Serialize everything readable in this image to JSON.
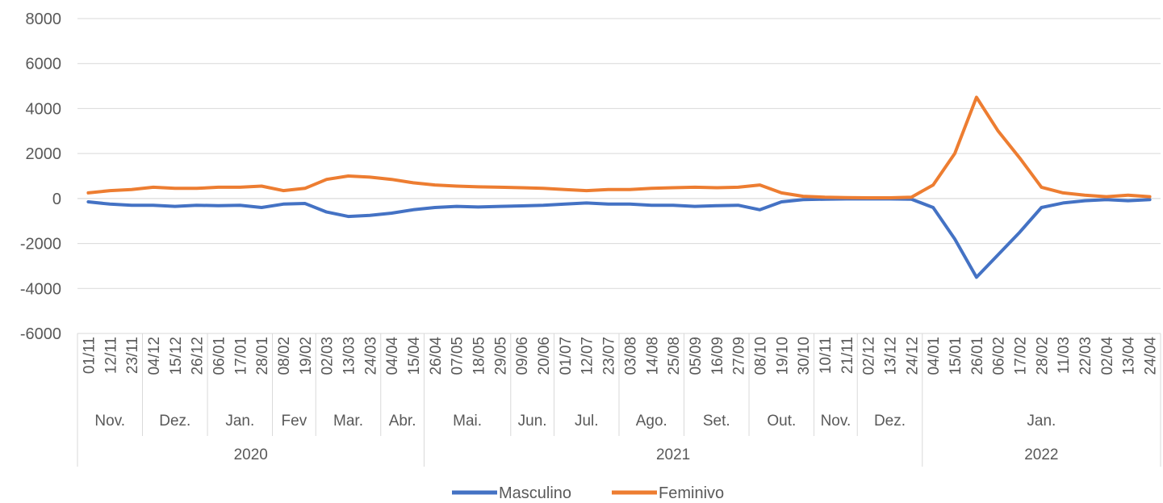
{
  "chart_data": {
    "type": "line",
    "title": "",
    "xlabel": "",
    "ylabel": "",
    "ylim": [
      -6000,
      8000
    ],
    "yticks": [
      -6000,
      -4000,
      -2000,
      0,
      2000,
      4000,
      6000,
      8000
    ],
    "grid": true,
    "legend": "bottom",
    "x_ticks": [
      "01/11",
      "12/11",
      "23/11",
      "04/12",
      "15/12",
      "26/12",
      "06/01",
      "17/01",
      "28/01",
      "08/02",
      "19/02",
      "02/03",
      "13/03",
      "24/03",
      "04/04",
      "15/04",
      "26/04",
      "07/05",
      "18/05",
      "29/05",
      "09/06",
      "20/06",
      "01/07",
      "12/07",
      "23/07",
      "03/08",
      "14/08",
      "25/08",
      "05/09",
      "16/09",
      "27/09",
      "08/10",
      "19/10",
      "30/10",
      "10/11",
      "21/11",
      "02/12",
      "13/12",
      "24/12",
      "04/01",
      "15/01",
      "26/01",
      "06/02",
      "17/02",
      "28/02",
      "11/03",
      "22/03",
      "02/04",
      "13/04",
      "24/04"
    ],
    "months": [
      {
        "label": "Nov.",
        "start": 0,
        "end": 3
      },
      {
        "label": "Dez.",
        "start": 3,
        "end": 6
      },
      {
        "label": "Jan.",
        "start": 6,
        "end": 9
      },
      {
        "label": "Fev",
        "start": 9,
        "end": 11
      },
      {
        "label": "Mar.",
        "start": 11,
        "end": 14
      },
      {
        "label": "Abr.",
        "start": 14,
        "end": 16
      },
      {
        "label": "Mai.",
        "start": 16,
        "end": 20
      },
      {
        "label": "Jun.",
        "start": 20,
        "end": 22
      },
      {
        "label": "Jul.",
        "start": 22,
        "end": 25
      },
      {
        "label": "Ago.",
        "start": 25,
        "end": 28
      },
      {
        "label": "Set.",
        "start": 28,
        "end": 31
      },
      {
        "label": "Out.",
        "start": 31,
        "end": 34
      },
      {
        "label": "Nov.",
        "start": 34,
        "end": 36
      },
      {
        "label": "Dez.",
        "start": 36,
        "end": 39
      },
      {
        "label": "Jan.",
        "start": 39,
        "end": 50
      }
    ],
    "years": [
      {
        "label": "2020",
        "start": 0,
        "end": 16
      },
      {
        "label": "2021",
        "start": 16,
        "end": 39
      },
      {
        "label": "2022",
        "start": 39,
        "end": 50
      }
    ],
    "series": [
      {
        "name": "Masculino",
        "color": "#4472C4",
        "values": [
          -150,
          -250,
          -300,
          -300,
          -350,
          -300,
          -320,
          -300,
          -400,
          -250,
          -220,
          -600,
          -800,
          -750,
          -650,
          -500,
          -400,
          -350,
          -380,
          -350,
          -330,
          -300,
          -250,
          -200,
          -250,
          -250,
          -300,
          -300,
          -350,
          -320,
          -300,
          -500,
          -150,
          -50,
          -30,
          -20,
          -20,
          -20,
          -30,
          -400,
          -1800,
          -3500,
          -2500,
          -1500,
          -400,
          -200,
          -100,
          -50,
          -100,
          -50
        ]
      },
      {
        "name": "Feminivo",
        "color": "#ED7D31",
        "values": [
          250,
          350,
          400,
          500,
          450,
          450,
          500,
          500,
          550,
          350,
          450,
          850,
          1000,
          950,
          850,
          700,
          600,
          550,
          520,
          500,
          480,
          450,
          400,
          350,
          400,
          400,
          450,
          480,
          500,
          480,
          500,
          600,
          250,
          100,
          60,
          40,
          30,
          30,
          60,
          600,
          2000,
          4500,
          3000,
          1800,
          500,
          250,
          150,
          80,
          150,
          80
        ]
      }
    ]
  }
}
